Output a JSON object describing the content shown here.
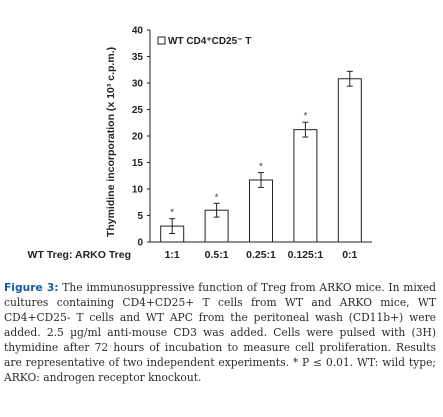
{
  "chart_data": {
    "type": "bar",
    "ylabel": "Thymidine incorporation (x 10³ c.p.m.)",
    "xlabel": "WT Treg: ARKO Treg",
    "categories": [
      "1:1",
      "0.5:1",
      "0.25:1",
      "0.125:1",
      "0:1"
    ],
    "series": [
      {
        "name": "WT CD4⁺CD25⁻ T",
        "values": [
          3.0,
          6.0,
          11.7,
          21.2,
          30.8
        ],
        "errors": [
          1.4,
          1.3,
          1.4,
          1.4,
          1.4
        ],
        "significant": [
          true,
          true,
          true,
          true,
          false
        ]
      }
    ],
    "ylim": [
      0,
      40
    ],
    "yticks": [
      "0",
      "5",
      "10",
      "15",
      "20",
      "25",
      "30",
      "35",
      "40"
    ],
    "significance_marker": "*",
    "legend": "top-left",
    "grid": false,
    "colors": {
      "bar_fill": "#ffffff",
      "bar_stroke": "#222222",
      "axis": "#222222"
    }
  },
  "caption": {
    "label": "Figure 3:",
    "text": " The immunosuppressive function of Treg from ARKO mice. In mixed cultures containing CD4+CD25+ T cells from WT and ARKO mice, WT CD4+CD25- T cells and WT APC from the peritoneal wash (CD11b+) were added. 2.5 µg/ml anti-mouse CD3 was added. Cells were pulsed with (3H) thymidine after 72 hours of incubation to measure cell proliferation. Results are representative of two independent experiments. * P ≤ 0.01. WT: wild type; ARKO: androgen receptor knockout."
  }
}
